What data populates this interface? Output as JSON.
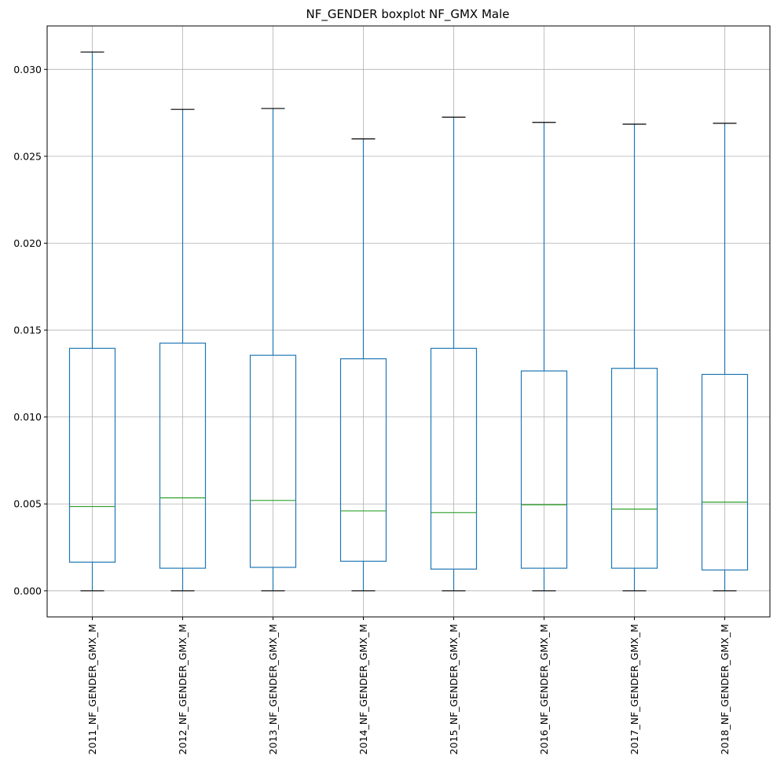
{
  "chart_data": {
    "type": "boxplot",
    "title": "NF_GENDER boxplot NF_GMX Male",
    "xlabel": "",
    "ylabel": "",
    "ylim": [
      -0.0015,
      0.0325
    ],
    "grid": true,
    "yticks": [
      0.0,
      0.005,
      0.01,
      0.015,
      0.02,
      0.025,
      0.03
    ],
    "ytick_labels": [
      "0.000",
      "0.005",
      "0.010",
      "0.015",
      "0.020",
      "0.025",
      "0.030"
    ],
    "categories": [
      "2011_NF_GENDER_GMX_M",
      "2012_NF_GENDER_GMX_M",
      "2013_NF_GENDER_GMX_M",
      "2014_NF_GENDER_GMX_M",
      "2015_NF_GENDER_GMX_M",
      "2016_NF_GENDER_GMX_M",
      "2017_NF_GENDER_GMX_M",
      "2018_NF_GENDER_GMX_M"
    ],
    "boxes": [
      {
        "whislo": 0.0,
        "q1": 0.00165,
        "med": 0.00485,
        "q3": 0.01395,
        "whishi": 0.031
      },
      {
        "whislo": 0.0,
        "q1": 0.0013,
        "med": 0.00535,
        "q3": 0.01425,
        "whishi": 0.0277
      },
      {
        "whislo": 0.0,
        "q1": 0.00135,
        "med": 0.0052,
        "q3": 0.01355,
        "whishi": 0.02775
      },
      {
        "whislo": 0.0,
        "q1": 0.0017,
        "med": 0.0046,
        "q3": 0.01335,
        "whishi": 0.026
      },
      {
        "whislo": 0.0,
        "q1": 0.00125,
        "med": 0.0045,
        "q3": 0.01395,
        "whishi": 0.02725
      },
      {
        "whislo": 0.0,
        "q1": 0.0013,
        "med": 0.00495,
        "q3": 0.01265,
        "whishi": 0.02695
      },
      {
        "whislo": 0.0,
        "q1": 0.0013,
        "med": 0.0047,
        "q3": 0.0128,
        "whishi": 0.02685
      },
      {
        "whislo": 0.0,
        "q1": 0.0012,
        "med": 0.0051,
        "q3": 0.01245,
        "whishi": 0.0269
      }
    ],
    "colors": {
      "box": "#1f77b4",
      "median": "#2ca02c",
      "cap": "#000000",
      "grid": "#b0b0b0"
    }
  }
}
